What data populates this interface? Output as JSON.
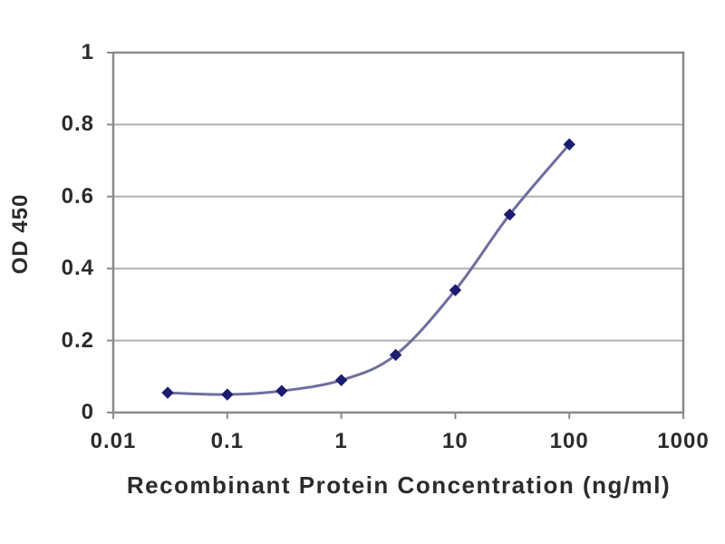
{
  "figure": {
    "background": "#ffffff",
    "description": "ELISA standard curve line chart"
  },
  "chart_data": {
    "type": "line",
    "x_scale": "log",
    "x": [
      0.03,
      0.1,
      0.3,
      1,
      3,
      10,
      30,
      100
    ],
    "values": [
      0.055,
      0.05,
      0.06,
      0.09,
      0.16,
      0.34,
      0.55,
      0.745
    ],
    "title": "",
    "xlabel": "Recombinant Protein Concentration (ng/ml)",
    "ylabel": "OD 450",
    "xlim": [
      0.01,
      1000
    ],
    "ylim": [
      0,
      1
    ],
    "x_ticks": [
      0.01,
      0.1,
      1,
      10,
      100,
      1000
    ],
    "x_tick_labels": [
      "0.01",
      "0.1",
      "1",
      "10",
      "100",
      "1000"
    ],
    "y_ticks": [
      0,
      0.2,
      0.4,
      0.6,
      0.8,
      1
    ],
    "y_tick_labels": [
      "0",
      "0.2",
      "0.4",
      "0.6",
      "0.8",
      "1"
    ],
    "grid": "horizontal",
    "legend": "none",
    "marker": "diamond",
    "colors": {
      "line": "#6e6e9e",
      "marker": "#1c1c72",
      "grid": "#b0b0b0",
      "axis": "#8a8a8a",
      "text": "#2b2b2b"
    }
  }
}
